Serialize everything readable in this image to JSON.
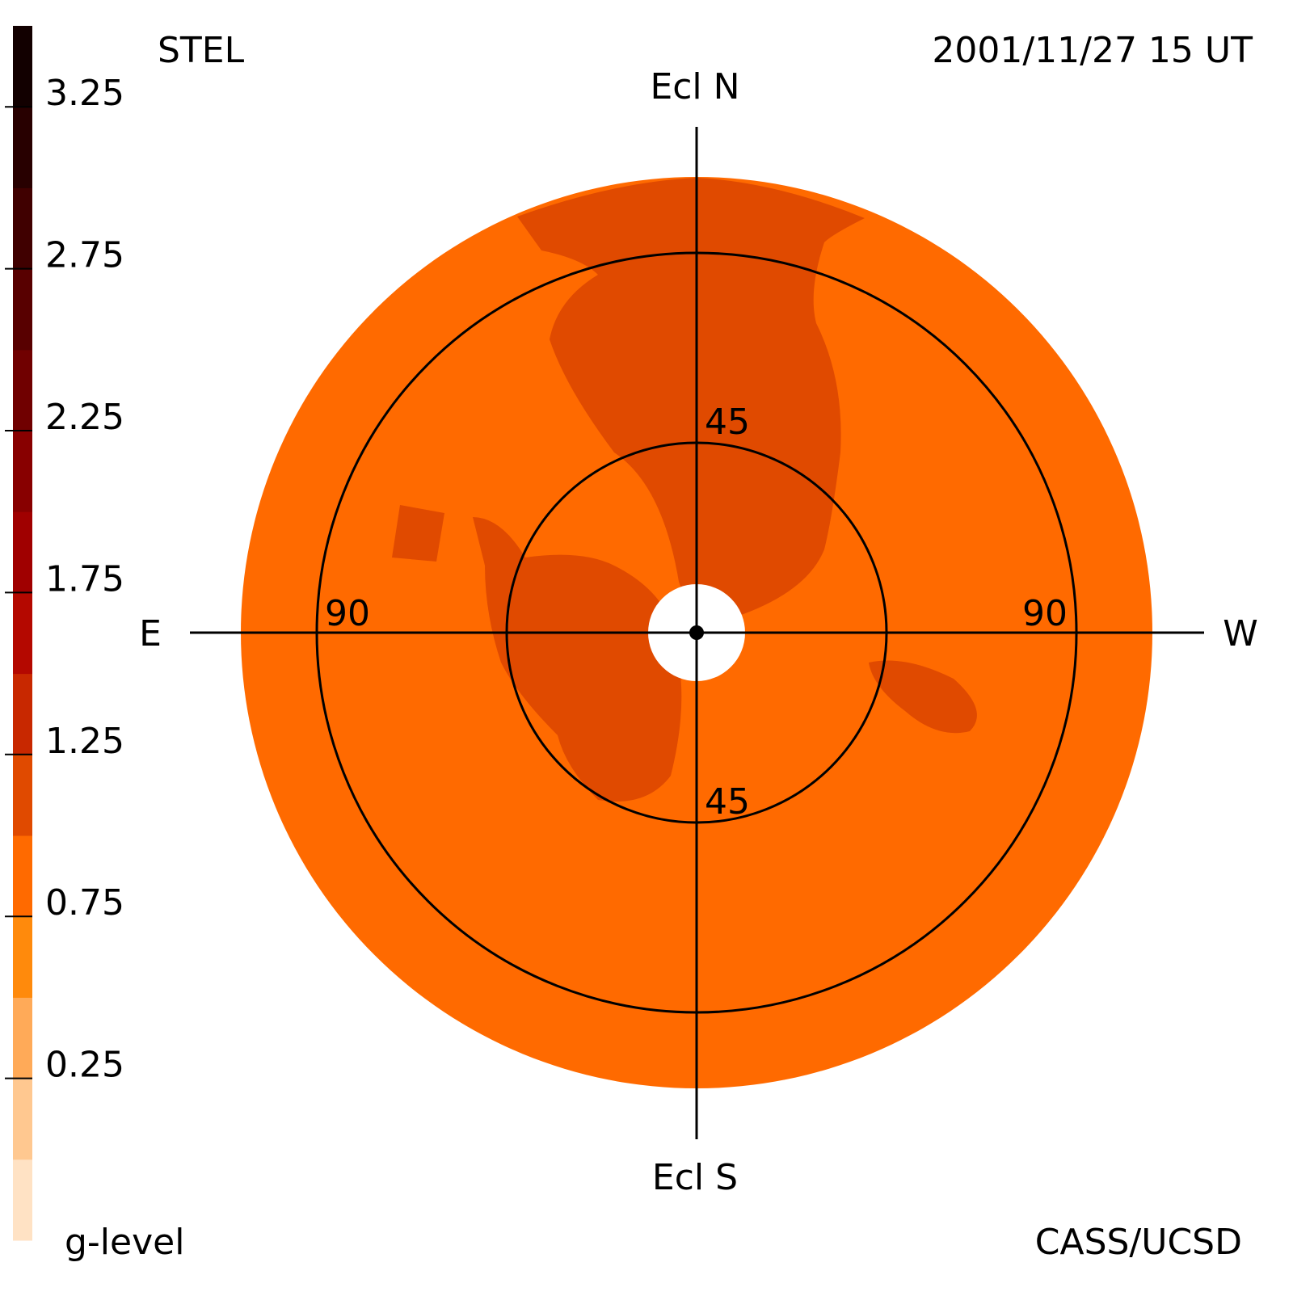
{
  "header": {
    "title": "STEL",
    "date": "2001/11/27 15 UT",
    "credit": "CASS/UCSD"
  },
  "colorbar": {
    "label": "g-level",
    "range": [
      -0.25,
      3.5
    ],
    "ticks": [
      3.25,
      2.75,
      2.25,
      1.75,
      1.25,
      0.75,
      0.25
    ],
    "colors": [
      "#ffe2c4",
      "#ffc890",
      "#ffaa58",
      "#ff8a0c",
      "#ff6a00",
      "#e04a00",
      "#c82800",
      "#b40800",
      "#a00000",
      "#880000",
      "#700000",
      "#580000",
      "#400000",
      "#280000",
      "#120000"
    ]
  },
  "map": {
    "north": "Ecl N",
    "south": "Ecl S",
    "east": "E",
    "west": "W",
    "ring_labels": [
      "90",
      "90",
      "45",
      "45"
    ]
  }
}
